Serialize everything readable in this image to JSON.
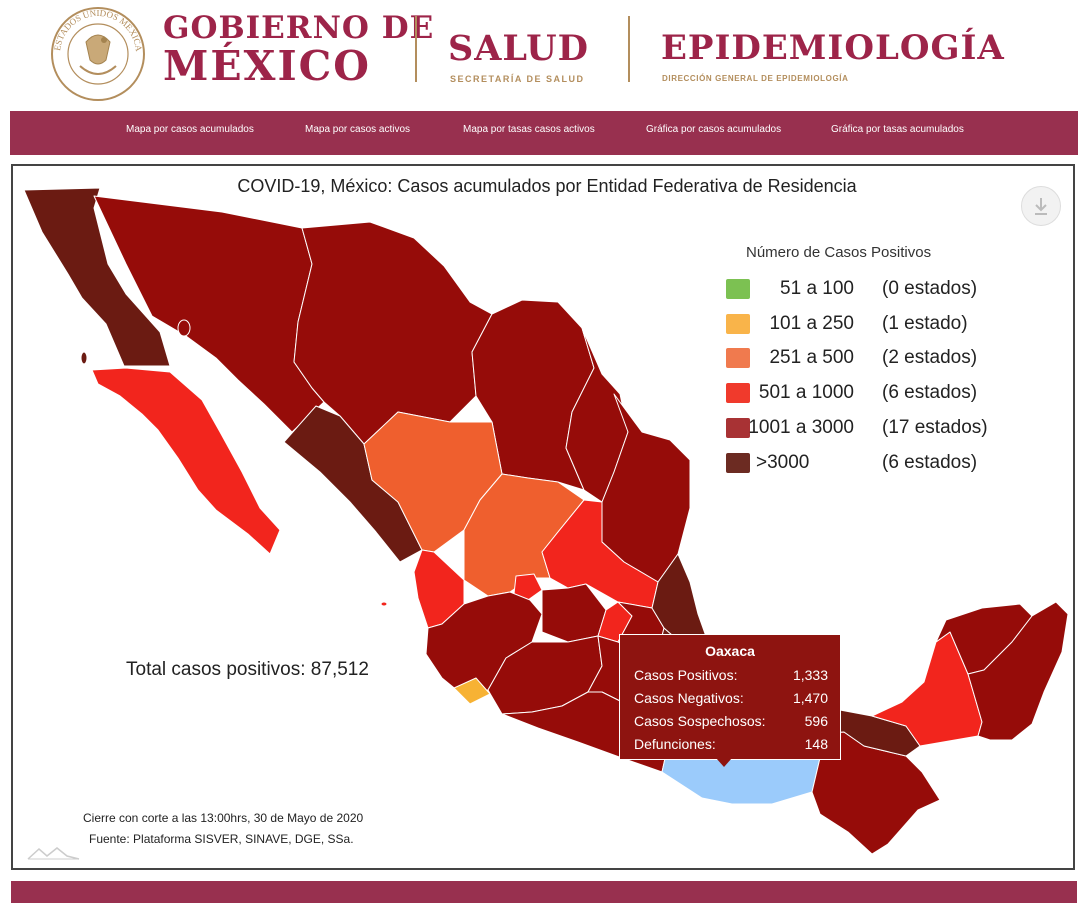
{
  "header": {
    "gobierno_line1": "GOBIERNO DE",
    "gobierno_line2": "MÉXICO",
    "seal_text": "ESTADOS UNIDOS MEXICANOS",
    "salud_title": "SALUD",
    "salud_subtitle": "SECRETARÍA DE SALUD",
    "epi_title": "EPIDEMIOLOGÍA",
    "epi_subtitle": "DIRECCIÓN GENERAL DE EPIDEMIOLOGÍA"
  },
  "nav": {
    "items": [
      {
        "label": "Mapa por casos acumulados"
      },
      {
        "label": "Mapa por casos activos"
      },
      {
        "label": "Mapa por tasas casos activos"
      },
      {
        "label": "Gráfica por casos acumulados"
      },
      {
        "label": "Gráfica por tasas acumulados"
      }
    ]
  },
  "map": {
    "title": "COVID-19, México: Casos acumulados por Entidad Federativa de Residencia",
    "download_icon": "download-icon",
    "legend": {
      "title": "Número de Casos Positivos",
      "items": [
        {
          "range": "51 a 100",
          "count": "(0 estados)",
          "color": "#7cc152"
        },
        {
          "range": "101 a 250",
          "count": "(1 estado)",
          "color": "#f9b44a"
        },
        {
          "range": "251 a 500",
          "count": "(2 estados)",
          "color": "#f07a4e"
        },
        {
          "range": "501 a 1000",
          "count": "(6 estados)",
          "color": "#f03a2c"
        },
        {
          "range": "1001 a 3000",
          "count": "(17 estados)",
          "color": "#a83234"
        },
        {
          "range": ">3000",
          "count": "(6 estados)",
          "color": "#6c2b22"
        }
      ]
    },
    "total_cases": "Total casos positivos: 87,512",
    "footnote_cutoff": "Cierre con corte a las 13:00hrs, 30 de Mayo de 2020",
    "footnote_source": "Fuente: Plataforma SISVER, SINAVE, DGE, SSa.",
    "tooltip": {
      "state": "Oaxaca",
      "rows": [
        {
          "label": "Casos Positivos:",
          "value": "1,333"
        },
        {
          "label": "Casos Negativos:",
          "value": "1,470"
        },
        {
          "label": "Casos Sospechosos:",
          "value": "596"
        },
        {
          "label": "Defunciones:",
          "value": "148"
        }
      ]
    },
    "colors": {
      "very_dark": "#6b1b12",
      "dark": "#960c09",
      "red": "#f2251d",
      "orange": "#ef5f2e",
      "light_orange": "#f7b234",
      "selected": "#9bcbfb",
      "border": "#ffffff"
    }
  },
  "colors": {
    "brand": "#9d2449",
    "gold": "#b38e5d",
    "nav_background": "#98304f"
  }
}
